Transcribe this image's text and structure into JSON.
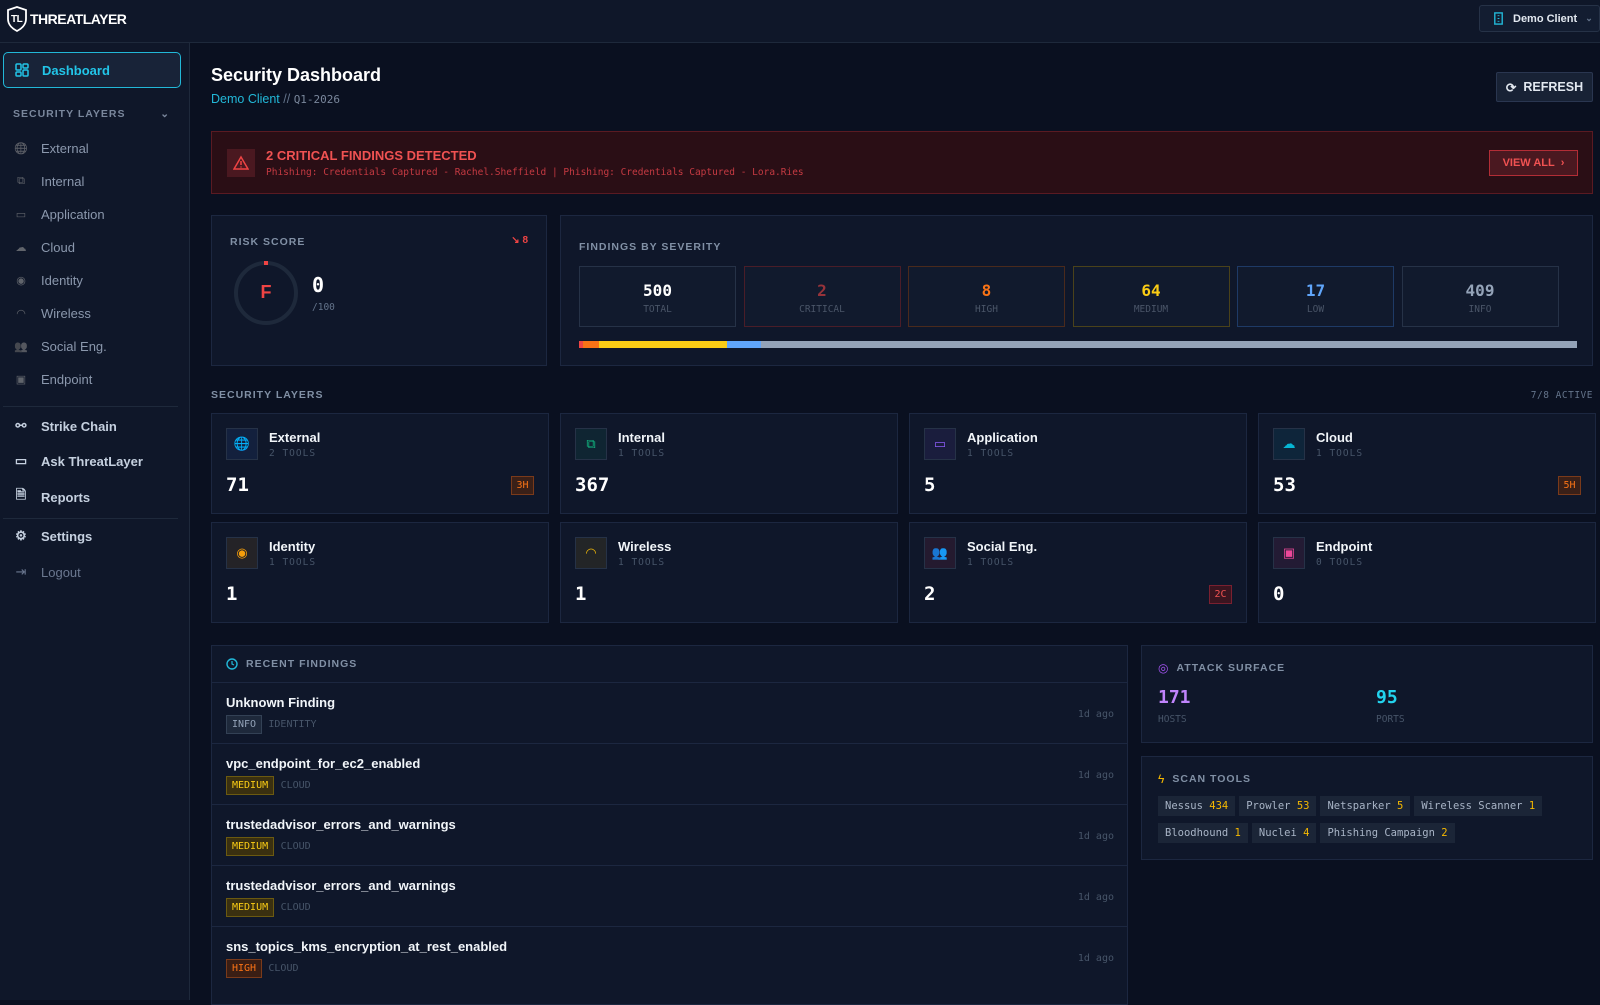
{
  "app": {
    "brand": "THREATLAYER",
    "client_selector": "Demo Client"
  },
  "sidebar": {
    "dashboard": "Dashboard",
    "section": "SECURITY LAYERS",
    "layers": [
      "External",
      "Internal",
      "Application",
      "Cloud",
      "Identity",
      "Wireless",
      "Social Eng.",
      "Endpoint"
    ],
    "tools": [
      "Strike Chain",
      "Ask ThreatLayer",
      "Reports"
    ],
    "settings": "Settings",
    "logout": "Logout"
  },
  "header": {
    "title": "Security Dashboard",
    "client": "Demo Client",
    "sep": " // ",
    "period": "Q1-2026",
    "refresh": "REFRESH"
  },
  "alert": {
    "title": "2 CRITICAL FINDINGS DETECTED",
    "detail": "Phishing: Credentials Captured - Rachel.Sheffield | Phishing: Credentials Captured - Lora.Ries",
    "button": "VIEW ALL"
  },
  "risk": {
    "label": "RISK SCORE",
    "trend": "8",
    "grade": "F",
    "score": "0",
    "max": "/100"
  },
  "severity": {
    "label": "FINDINGS BY SEVERITY",
    "items": [
      {
        "value": "500",
        "label": "TOTAL",
        "color": "#ffffff"
      },
      {
        "value": "2",
        "label": "CRITICAL",
        "color": "#ef4444"
      },
      {
        "value": "8",
        "label": "HIGH",
        "color": "#f97316"
      },
      {
        "value": "64",
        "label": "MEDIUM",
        "color": "#facc15"
      },
      {
        "value": "17",
        "label": "LOW",
        "color": "#60a5fa"
      },
      {
        "value": "409",
        "label": "INFO",
        "color": "#94a3b8"
      }
    ]
  },
  "layers": {
    "label": "SECURITY LAYERS",
    "active": "7/8 ACTIVE",
    "items": [
      {
        "name": "External",
        "tools": "2 TOOLS",
        "count": "71",
        "badge": "3H",
        "color": "#3b82f6"
      },
      {
        "name": "Internal",
        "tools": "1 TOOLS",
        "count": "367",
        "badge": "",
        "color": "#10b981"
      },
      {
        "name": "Application",
        "tools": "1 TOOLS",
        "count": "5",
        "badge": "",
        "color": "#8b5cf6"
      },
      {
        "name": "Cloud",
        "tools": "1 TOOLS",
        "count": "53",
        "badge": "5H",
        "color": "#06b6d4"
      },
      {
        "name": "Identity",
        "tools": "1 TOOLS",
        "count": "1",
        "badge": "",
        "color": "#f59e0b"
      },
      {
        "name": "Wireless",
        "tools": "1 TOOLS",
        "count": "1",
        "badge": "",
        "color": "#eab308"
      },
      {
        "name": "Social Eng.",
        "tools": "1 TOOLS",
        "count": "2",
        "badge": "2C",
        "color": "#f43f5e"
      },
      {
        "name": "Endpoint",
        "tools": "0 TOOLS",
        "count": "0",
        "badge": "",
        "color": "#ec4899"
      }
    ]
  },
  "recent": {
    "label": "RECENT FINDINGS",
    "items": [
      {
        "title": "Unknown Finding",
        "severity": "INFO",
        "category": "IDENTITY",
        "ago": "1d ago"
      },
      {
        "title": "vpc_endpoint_for_ec2_enabled",
        "severity": "MEDIUM",
        "category": "CLOUD",
        "ago": "1d ago"
      },
      {
        "title": "trustedadvisor_errors_and_warnings",
        "severity": "MEDIUM",
        "category": "CLOUD",
        "ago": "1d ago"
      },
      {
        "title": "trustedadvisor_errors_and_warnings",
        "severity": "MEDIUM",
        "category": "CLOUD",
        "ago": "1d ago"
      },
      {
        "title": "sns_topics_kms_encryption_at_rest_enabled",
        "severity": "HIGH",
        "category": "CLOUD",
        "ago": "1d ago"
      }
    ]
  },
  "attack": {
    "label": "ATTACK SURFACE",
    "hosts": "171",
    "hosts_label": "HOSTS",
    "ports": "95",
    "ports_label": "PORTS"
  },
  "scan": {
    "label": "SCAN TOOLS",
    "tools": [
      {
        "name": "Nessus",
        "count": "434"
      },
      {
        "name": "Prowler",
        "count": "53"
      },
      {
        "name": "Netsparker",
        "count": "5"
      },
      {
        "name": "Wireless Scanner",
        "count": "1"
      },
      {
        "name": "Bloodhound",
        "count": "1"
      },
      {
        "name": "Nuclei",
        "count": "4"
      },
      {
        "name": "Phishing Campaign",
        "count": "2"
      }
    ]
  }
}
